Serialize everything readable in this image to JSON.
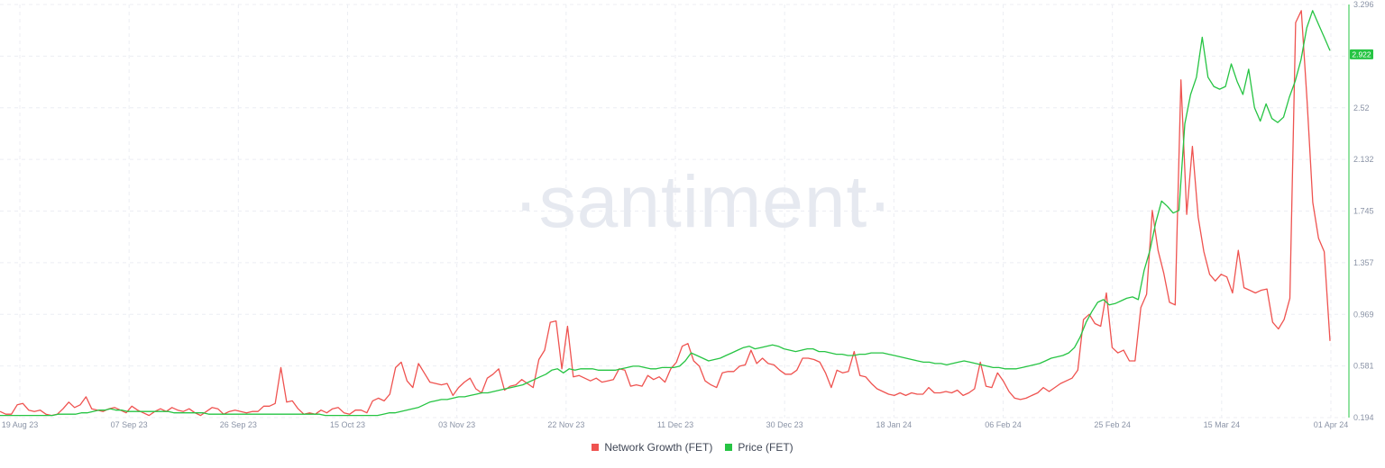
{
  "watermark": "·santiment·",
  "legend": {
    "items": [
      {
        "label": "Network Growth (FET)",
        "color": "#ef5350"
      },
      {
        "label": "Price (FET)",
        "color": "#26c443"
      }
    ]
  },
  "chart_data": {
    "type": "line",
    "x_tick_labels": [
      "19 Aug 23",
      "07 Sep 23",
      "26 Sep 23",
      "15 Oct 23",
      "03 Nov 23",
      "22 Nov 23",
      "11 Dec 23",
      "30 Dec 23",
      "18 Jan 24",
      "06 Feb 24",
      "25 Feb 24",
      "15 Mar 24",
      "01 Apr 24"
    ],
    "y_tick_labels": [
      "3.296",
      "2.907",
      "2.52",
      "2.132",
      "1.745",
      "1.357",
      "0.969",
      "0.581",
      "0.194"
    ],
    "ylim": [
      0.194,
      3.296
    ],
    "last_price_label": "2.922",
    "grid": true,
    "legend_position": "bottom-center",
    "series": [
      {
        "name": "Network Growth (FET)",
        "color": "#ef5350",
        "values": [
          0.24,
          0.22,
          0.22,
          0.29,
          0.3,
          0.25,
          0.24,
          0.25,
          0.22,
          0.21,
          0.22,
          0.26,
          0.31,
          0.27,
          0.29,
          0.35,
          0.26,
          0.25,
          0.24,
          0.26,
          0.27,
          0.25,
          0.23,
          0.28,
          0.25,
          0.23,
          0.21,
          0.24,
          0.26,
          0.24,
          0.27,
          0.25,
          0.24,
          0.26,
          0.23,
          0.21,
          0.24,
          0.27,
          0.26,
          0.22,
          0.24,
          0.25,
          0.24,
          0.23,
          0.24,
          0.24,
          0.28,
          0.28,
          0.3,
          0.57,
          0.31,
          0.32,
          0.26,
          0.22,
          0.23,
          0.22,
          0.25,
          0.23,
          0.26,
          0.27,
          0.23,
          0.22,
          0.25,
          0.25,
          0.23,
          0.32,
          0.34,
          0.32,
          0.37,
          0.57,
          0.61,
          0.47,
          0.42,
          0.6,
          0.53,
          0.46,
          0.45,
          0.44,
          0.45,
          0.36,
          0.42,
          0.46,
          0.49,
          0.41,
          0.38,
          0.49,
          0.52,
          0.56,
          0.4,
          0.43,
          0.44,
          0.48,
          0.45,
          0.42,
          0.63,
          0.7,
          0.91,
          0.92,
          0.56,
          0.88,
          0.5,
          0.51,
          0.49,
          0.47,
          0.49,
          0.46,
          0.47,
          0.48,
          0.56,
          0.55,
          0.43,
          0.44,
          0.43,
          0.51,
          0.48,
          0.5,
          0.46,
          0.56,
          0.61,
          0.73,
          0.75,
          0.62,
          0.58,
          0.47,
          0.44,
          0.42,
          0.53,
          0.54,
          0.54,
          0.58,
          0.59,
          0.7,
          0.6,
          0.64,
          0.6,
          0.59,
          0.55,
          0.52,
          0.52,
          0.55,
          0.64,
          0.64,
          0.63,
          0.61,
          0.53,
          0.42,
          0.55,
          0.53,
          0.54,
          0.69,
          0.51,
          0.5,
          0.45,
          0.41,
          0.39,
          0.37,
          0.36,
          0.38,
          0.36,
          0.38,
          0.37,
          0.37,
          0.42,
          0.38,
          0.38,
          0.39,
          0.38,
          0.4,
          0.36,
          0.38,
          0.41,
          0.61,
          0.43,
          0.42,
          0.53,
          0.47,
          0.39,
          0.34,
          0.33,
          0.34,
          0.36,
          0.38,
          0.42,
          0.39,
          0.42,
          0.45,
          0.47,
          0.49,
          0.55,
          0.93,
          0.97,
          0.9,
          0.88,
          1.13,
          0.72,
          0.68,
          0.7,
          0.62,
          0.62,
          1.02,
          1.12,
          1.75,
          1.45,
          1.28,
          1.06,
          1.04,
          2.73,
          1.72,
          2.23,
          1.7,
          1.44,
          1.27,
          1.22,
          1.27,
          1.25,
          1.13,
          1.45,
          1.17,
          1.15,
          1.13,
          1.15,
          1.16,
          0.91,
          0.86,
          0.93,
          1.09,
          3.16,
          3.25,
          2.57,
          1.81,
          1.54,
          1.44,
          0.77
        ]
      },
      {
        "name": "Price (FET)",
        "color": "#26c443",
        "values": [
          0.21,
          0.21,
          0.21,
          0.21,
          0.21,
          0.21,
          0.21,
          0.21,
          0.21,
          0.21,
          0.22,
          0.22,
          0.22,
          0.22,
          0.23,
          0.23,
          0.24,
          0.25,
          0.25,
          0.26,
          0.25,
          0.25,
          0.24,
          0.24,
          0.24,
          0.24,
          0.24,
          0.24,
          0.24,
          0.24,
          0.23,
          0.23,
          0.23,
          0.23,
          0.23,
          0.23,
          0.22,
          0.22,
          0.22,
          0.22,
          0.22,
          0.22,
          0.22,
          0.22,
          0.22,
          0.22,
          0.22,
          0.22,
          0.22,
          0.22,
          0.22,
          0.22,
          0.22,
          0.22,
          0.22,
          0.22,
          0.21,
          0.21,
          0.21,
          0.21,
          0.21,
          0.21,
          0.21,
          0.21,
          0.21,
          0.21,
          0.22,
          0.23,
          0.23,
          0.24,
          0.25,
          0.26,
          0.27,
          0.29,
          0.31,
          0.32,
          0.33,
          0.33,
          0.34,
          0.35,
          0.35,
          0.36,
          0.37,
          0.38,
          0.38,
          0.39,
          0.4,
          0.41,
          0.42,
          0.43,
          0.44,
          0.46,
          0.48,
          0.5,
          0.52,
          0.55,
          0.56,
          0.53,
          0.56,
          0.55,
          0.56,
          0.56,
          0.56,
          0.55,
          0.55,
          0.55,
          0.55,
          0.56,
          0.57,
          0.58,
          0.58,
          0.57,
          0.56,
          0.56,
          0.57,
          0.57,
          0.57,
          0.58,
          0.62,
          0.68,
          0.66,
          0.64,
          0.62,
          0.63,
          0.64,
          0.66,
          0.68,
          0.7,
          0.72,
          0.73,
          0.71,
          0.72,
          0.73,
          0.74,
          0.73,
          0.71,
          0.7,
          0.69,
          0.7,
          0.71,
          0.71,
          0.69,
          0.69,
          0.68,
          0.67,
          0.67,
          0.66,
          0.66,
          0.67,
          0.67,
          0.68,
          0.68,
          0.68,
          0.67,
          0.66,
          0.65,
          0.64,
          0.63,
          0.62,
          0.61,
          0.61,
          0.6,
          0.6,
          0.59,
          0.6,
          0.61,
          0.62,
          0.61,
          0.6,
          0.59,
          0.58,
          0.57,
          0.57,
          0.56,
          0.56,
          0.56,
          0.57,
          0.58,
          0.59,
          0.6,
          0.62,
          0.64,
          0.65,
          0.66,
          0.68,
          0.72,
          0.8,
          0.91,
          0.99,
          1.06,
          1.08,
          1.04,
          1.05,
          1.07,
          1.09,
          1.1,
          1.08,
          1.3,
          1.45,
          1.66,
          1.82,
          1.78,
          1.73,
          1.75,
          2.4,
          2.62,
          2.75,
          3.05,
          2.75,
          2.68,
          2.66,
          2.68,
          2.85,
          2.72,
          2.62,
          2.81,
          2.52,
          2.42,
          2.55,
          2.44,
          2.41,
          2.45,
          2.6,
          2.72,
          2.88,
          3.12,
          3.25,
          3.15,
          3.05,
          2.95
        ]
      }
    ]
  }
}
